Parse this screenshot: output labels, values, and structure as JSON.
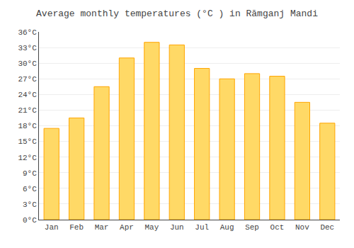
{
  "chart_data": {
    "type": "bar",
    "title": "Average monthly temperatures (°C ) in Rāmganj Mandi",
    "categories": [
      "Jan",
      "Feb",
      "Mar",
      "Apr",
      "May",
      "Jun",
      "Jul",
      "Aug",
      "Sep",
      "Oct",
      "Nov",
      "Dec"
    ],
    "values": [
      17.5,
      19.5,
      25.5,
      31.0,
      34.0,
      33.5,
      29.0,
      27.0,
      28.0,
      27.5,
      22.5,
      18.5
    ],
    "color": "#FFD966",
    "ylim": [
      0,
      36
    ],
    "yticks": [
      {
        "value": 0,
        "label": "0°C"
      },
      {
        "value": 3,
        "label": "3°C"
      },
      {
        "value": 6,
        "label": "6°C"
      },
      {
        "value": 9,
        "label": "9°C"
      },
      {
        "value": 12,
        "label": "12°C"
      },
      {
        "value": 15,
        "label": "15°C"
      },
      {
        "value": 18,
        "label": "18°C"
      },
      {
        "value": 21,
        "label": "21°C"
      },
      {
        "value": 24,
        "label": "24°C"
      },
      {
        "value": 27,
        "label": "27°C"
      },
      {
        "value": 30,
        "label": "30°C"
      },
      {
        "value": 33,
        "label": "33°C"
      },
      {
        "value": 36,
        "label": "36°C"
      }
    ],
    "grid": true
  }
}
